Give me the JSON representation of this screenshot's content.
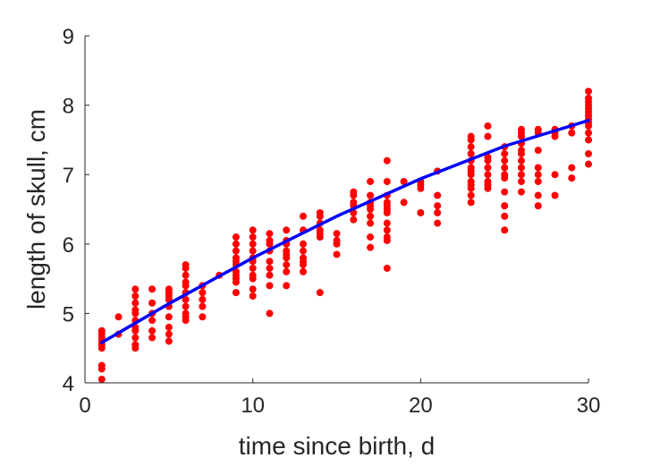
{
  "chart_data": {
    "type": "scatter",
    "title": "",
    "xlabel": "time since birth, d",
    "ylabel": "length of skull, cm",
    "xlim": [
      0,
      30
    ],
    "ylim": [
      4,
      9
    ],
    "xticks": [
      0,
      10,
      20,
      30
    ],
    "xtick_labels": [
      "0",
      "10",
      "20",
      "30"
    ],
    "yticks": [
      4,
      5,
      6,
      7,
      8,
      9
    ],
    "ytick_labels": [
      "4",
      "5",
      "6",
      "7",
      "8",
      "9"
    ],
    "grid": false,
    "legend": "none",
    "box": "left-bottom axes only",
    "series": [
      {
        "kind": "points",
        "color": "#ff0000",
        "points": [
          [
            1,
            4.05
          ],
          [
            1,
            4.2
          ],
          [
            1,
            4.25
          ],
          [
            1,
            4.5
          ],
          [
            1,
            4.55
          ],
          [
            1,
            4.6
          ],
          [
            1,
            4.65
          ],
          [
            1,
            4.7
          ],
          [
            1,
            4.75
          ],
          [
            2,
            4.7
          ],
          [
            2,
            4.95
          ],
          [
            3,
            4.5
          ],
          [
            3,
            4.55
          ],
          [
            3,
            4.65
          ],
          [
            3,
            4.75
          ],
          [
            3,
            4.8
          ],
          [
            3,
            4.9
          ],
          [
            3,
            5.0
          ],
          [
            3,
            5.05
          ],
          [
            3,
            5.15
          ],
          [
            3,
            5.25
          ],
          [
            3,
            5.35
          ],
          [
            4,
            4.65
          ],
          [
            4,
            4.75
          ],
          [
            4,
            4.9
          ],
          [
            4,
            5.0
          ],
          [
            4,
            5.15
          ],
          [
            4,
            5.35
          ],
          [
            5,
            4.6
          ],
          [
            5,
            4.7
          ],
          [
            5,
            4.8
          ],
          [
            5,
            4.95
          ],
          [
            5,
            5.1
          ],
          [
            5,
            5.2
          ],
          [
            5,
            5.25
          ],
          [
            5,
            5.3
          ],
          [
            5,
            5.35
          ],
          [
            6,
            4.9
          ],
          [
            6,
            4.95
          ],
          [
            6,
            5.0
          ],
          [
            6,
            5.1
          ],
          [
            6,
            5.2
          ],
          [
            6,
            5.3
          ],
          [
            6,
            5.4
          ],
          [
            6,
            5.45
          ],
          [
            6,
            5.55
          ],
          [
            6,
            5.65
          ],
          [
            6,
            5.7
          ],
          [
            7,
            4.95
          ],
          [
            7,
            5.1
          ],
          [
            7,
            5.2
          ],
          [
            7,
            5.3
          ],
          [
            7,
            5.4
          ],
          [
            8,
            5.55
          ],
          [
            9,
            5.3
          ],
          [
            9,
            5.45
          ],
          [
            9,
            5.5
          ],
          [
            9,
            5.55
          ],
          [
            9,
            5.6
          ],
          [
            9,
            5.7
          ],
          [
            9,
            5.75
          ],
          [
            9,
            5.8
          ],
          [
            9,
            5.9
          ],
          [
            9,
            6.0
          ],
          [
            9,
            6.1
          ],
          [
            10,
            5.25
          ],
          [
            10,
            5.35
          ],
          [
            10,
            5.5
          ],
          [
            10,
            5.55
          ],
          [
            10,
            5.65
          ],
          [
            10,
            5.75
          ],
          [
            10,
            5.8
          ],
          [
            10,
            5.9
          ],
          [
            10,
            6.0
          ],
          [
            10,
            6.1
          ],
          [
            10,
            6.2
          ],
          [
            11,
            5.0
          ],
          [
            11,
            5.4
          ],
          [
            11,
            5.55
          ],
          [
            11,
            5.65
          ],
          [
            11,
            5.75
          ],
          [
            11,
            5.9
          ],
          [
            11,
            6.0
          ],
          [
            11,
            6.05
          ],
          [
            11,
            6.15
          ],
          [
            12,
            5.4
          ],
          [
            12,
            5.6
          ],
          [
            12,
            5.7
          ],
          [
            12,
            5.8
          ],
          [
            12,
            5.85
          ],
          [
            12,
            5.9
          ],
          [
            12,
            6.0
          ],
          [
            12,
            6.05
          ],
          [
            12,
            6.2
          ],
          [
            13,
            5.6
          ],
          [
            13,
            5.7
          ],
          [
            13,
            5.75
          ],
          [
            13,
            5.8
          ],
          [
            13,
            5.9
          ],
          [
            13,
            6.0
          ],
          [
            13,
            6.2
          ],
          [
            13,
            6.4
          ],
          [
            14,
            5.3
          ],
          [
            14,
            6.1
          ],
          [
            14,
            6.15
          ],
          [
            14,
            6.2
          ],
          [
            14,
            6.3
          ],
          [
            14,
            6.4
          ],
          [
            14,
            6.45
          ],
          [
            15,
            5.85
          ],
          [
            15,
            6.0
          ],
          [
            15,
            6.05
          ],
          [
            15,
            6.15
          ],
          [
            16,
            6.35
          ],
          [
            16,
            6.45
          ],
          [
            16,
            6.55
          ],
          [
            16,
            6.6
          ],
          [
            16,
            6.7
          ],
          [
            16,
            6.75
          ],
          [
            17,
            5.95
          ],
          [
            17,
            6.1
          ],
          [
            17,
            6.3
          ],
          [
            17,
            6.4
          ],
          [
            17,
            6.5
          ],
          [
            17,
            6.55
          ],
          [
            17,
            6.6
          ],
          [
            17,
            6.7
          ],
          [
            17,
            6.9
          ],
          [
            18,
            5.65
          ],
          [
            18,
            6.05
          ],
          [
            18,
            6.1
          ],
          [
            18,
            6.2
          ],
          [
            18,
            6.3
          ],
          [
            18,
            6.45
          ],
          [
            18,
            6.5
          ],
          [
            18,
            6.55
          ],
          [
            18,
            6.6
          ],
          [
            18,
            6.7
          ],
          [
            18,
            6.9
          ],
          [
            18,
            7.2
          ],
          [
            19,
            6.6
          ],
          [
            19,
            6.9
          ],
          [
            20,
            6.45
          ],
          [
            20,
            6.8
          ],
          [
            20,
            6.85
          ],
          [
            20,
            6.9
          ],
          [
            21,
            6.3
          ],
          [
            21,
            6.45
          ],
          [
            21,
            6.55
          ],
          [
            21,
            6.7
          ],
          [
            21,
            7.05
          ],
          [
            23,
            6.6
          ],
          [
            23,
            6.7
          ],
          [
            23,
            6.8
          ],
          [
            23,
            6.85
          ],
          [
            23,
            6.9
          ],
          [
            23,
            7.0
          ],
          [
            23,
            7.05
          ],
          [
            23,
            7.1
          ],
          [
            23,
            7.2
          ],
          [
            23,
            7.3
          ],
          [
            23,
            7.4
          ],
          [
            23,
            7.5
          ],
          [
            23,
            7.55
          ],
          [
            24,
            6.8
          ],
          [
            24,
            6.85
          ],
          [
            24,
            6.9
          ],
          [
            24,
            7.0
          ],
          [
            24,
            7.1
          ],
          [
            24,
            7.2
          ],
          [
            24,
            7.25
          ],
          [
            24,
            7.55
          ],
          [
            24,
            7.7
          ],
          [
            25,
            6.2
          ],
          [
            25,
            6.4
          ],
          [
            25,
            6.55
          ],
          [
            25,
            6.75
          ],
          [
            25,
            6.95
          ],
          [
            25,
            7.0
          ],
          [
            25,
            7.1
          ],
          [
            25,
            7.2
          ],
          [
            25,
            7.3
          ],
          [
            25,
            7.4
          ],
          [
            26,
            6.75
          ],
          [
            26,
            6.9
          ],
          [
            26,
            7.0
          ],
          [
            26,
            7.1
          ],
          [
            26,
            7.2
          ],
          [
            26,
            7.3
          ],
          [
            26,
            7.35
          ],
          [
            26,
            7.45
          ],
          [
            26,
            7.55
          ],
          [
            26,
            7.6
          ],
          [
            26,
            7.65
          ],
          [
            27,
            6.55
          ],
          [
            27,
            6.7
          ],
          [
            27,
            6.9
          ],
          [
            27,
            7.0
          ],
          [
            27,
            7.1
          ],
          [
            27,
            7.35
          ],
          [
            27,
            7.6
          ],
          [
            27,
            7.65
          ],
          [
            28,
            6.7
          ],
          [
            28,
            7.0
          ],
          [
            28,
            7.55
          ],
          [
            28,
            7.6
          ],
          [
            28,
            7.65
          ],
          [
            29,
            6.95
          ],
          [
            29,
            7.1
          ],
          [
            29,
            7.6
          ],
          [
            29,
            7.7
          ],
          [
            30,
            7.15
          ],
          [
            30,
            7.3
          ],
          [
            30,
            7.5
          ],
          [
            30,
            7.6
          ],
          [
            30,
            7.7
          ],
          [
            30,
            7.75
          ],
          [
            30,
            7.8
          ],
          [
            30,
            7.85
          ],
          [
            30,
            7.9
          ],
          [
            30,
            7.95
          ],
          [
            30,
            8.0
          ],
          [
            30,
            8.05
          ],
          [
            30,
            8.1
          ],
          [
            30,
            8.2
          ]
        ]
      },
      {
        "kind": "line",
        "color": "#0000ff",
        "x": [
          1,
          5,
          10,
          15,
          20,
          25,
          30
        ],
        "y": [
          4.58,
          5.14,
          5.8,
          6.4,
          6.94,
          7.41,
          7.78
        ]
      }
    ]
  }
}
